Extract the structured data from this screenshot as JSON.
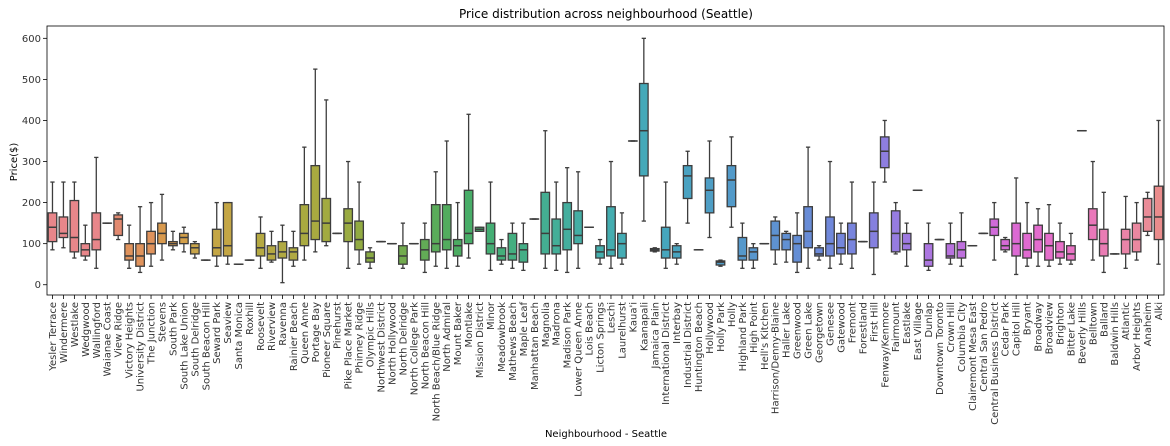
{
  "chart_data": {
    "type": "boxplot",
    "title": "Price distribution across neighbourhood (Seattle)",
    "xlabel": "Neighbourhood - Seattle",
    "ylabel": "Price($)",
    "ylim": [
      -25,
      630
    ],
    "yticks": [
      0,
      100,
      200,
      300,
      400,
      500,
      600
    ],
    "categories": [
      {
        "name": "Yesler Terrace",
        "color": "#e8868a",
        "min": 85,
        "q1": 105,
        "med": 140,
        "q3": 175,
        "max": 250
      },
      {
        "name": "Windermere",
        "color": "#e8868a",
        "min": 90,
        "q1": 115,
        "med": 125,
        "q3": 165,
        "max": 250
      },
      {
        "name": "Westlake",
        "color": "#e8868a",
        "min": 65,
        "q1": 80,
        "med": 115,
        "q3": 205,
        "max": 250
      },
      {
        "name": "Wedgwood",
        "color": "#e8868a",
        "min": 60,
        "q1": 70,
        "med": 85,
        "q3": 100,
        "max": 145
      },
      {
        "name": "Wallingford",
        "color": "#e8868a",
        "min": 40,
        "q1": 85,
        "med": 110,
        "q3": 175,
        "max": 310
      },
      {
        "name": "Waianae Coast",
        "color": "#e28a70",
        "min": 150,
        "q1": 150,
        "med": 150,
        "q3": 150,
        "max": 150
      },
      {
        "name": "View Ridge",
        "color": "#e28a70",
        "min": 110,
        "q1": 120,
        "med": 160,
        "q3": 170,
        "max": 175
      },
      {
        "name": "Victory Heights",
        "color": "#e0935c",
        "min": 40,
        "q1": 60,
        "med": 70,
        "q3": 100,
        "max": 145
      },
      {
        "name": "University District",
        "color": "#e0935c",
        "min": 30,
        "q1": 45,
        "med": 70,
        "q3": 100,
        "max": 190
      },
      {
        "name": "The Junction",
        "color": "#e0935c",
        "min": 45,
        "q1": 75,
        "med": 100,
        "q3": 130,
        "max": 200
      },
      {
        "name": "Stevens",
        "color": "#d99a4e",
        "min": 60,
        "q1": 100,
        "med": 125,
        "q3": 150,
        "max": 220
      },
      {
        "name": "South Park",
        "color": "#d99a4e",
        "min": 85,
        "q1": 95,
        "med": 100,
        "q3": 105,
        "max": 130
      },
      {
        "name": "South Lake Union",
        "color": "#d4a04a",
        "min": 80,
        "q1": 100,
        "med": 115,
        "q3": 125,
        "max": 140
      },
      {
        "name": "South Delridge",
        "color": "#c9a54a",
        "min": 65,
        "q1": 75,
        "med": 90,
        "q3": 100,
        "max": 105
      },
      {
        "name": "South Beacon Hill",
        "color": "#c9a54a",
        "min": 60,
        "q1": 60,
        "med": 60,
        "q3": 60,
        "max": 60
      },
      {
        "name": "Seward Park",
        "color": "#c4a645",
        "min": 45,
        "q1": 70,
        "med": 90,
        "q3": 135,
        "max": 200
      },
      {
        "name": "Seaview",
        "color": "#c4a645",
        "min": 50,
        "q1": 70,
        "med": 95,
        "q3": 200,
        "max": 200
      },
      {
        "name": "Santa Monica",
        "color": "#bda844",
        "min": 50,
        "q1": 50,
        "med": 50,
        "q3": 50,
        "max": 50
      },
      {
        "name": "Roxhill",
        "color": "#bda844",
        "min": 60,
        "q1": 60,
        "med": 60,
        "q3": 60,
        "max": 60
      },
      {
        "name": "Roosevelt",
        "color": "#b5a942",
        "min": 40,
        "q1": 70,
        "med": 90,
        "q3": 125,
        "max": 165
      },
      {
        "name": "Riverview",
        "color": "#b5a942",
        "min": 55,
        "q1": 60,
        "med": 75,
        "q3": 95,
        "max": 130
      },
      {
        "name": "Ravenna",
        "color": "#b0a942",
        "min": 5,
        "q1": 65,
        "med": 80,
        "q3": 105,
        "max": 145
      },
      {
        "name": "Rainier Beach",
        "color": "#b0a942",
        "min": 45,
        "q1": 60,
        "med": 80,
        "q3": 90,
        "max": 130
      },
      {
        "name": "Queen Anne",
        "color": "#a9aa40",
        "min": 60,
        "q1": 95,
        "med": 125,
        "q3": 195,
        "max": 335
      },
      {
        "name": "Portage Bay",
        "color": "#a9aa40",
        "min": 80,
        "q1": 110,
        "med": 155,
        "q3": 290,
        "max": 525
      },
      {
        "name": "Pioneer Square",
        "color": "#a2aa40",
        "min": 95,
        "q1": 105,
        "med": 150,
        "q3": 210,
        "max": 450
      },
      {
        "name": "Pinehurst",
        "color": "#a2aa40",
        "min": 125,
        "q1": 125,
        "med": 125,
        "q3": 125,
        "max": 125
      },
      {
        "name": "Pike Place Market",
        "color": "#9aab42",
        "min": 40,
        "q1": 105,
        "med": 150,
        "q3": 185,
        "max": 300
      },
      {
        "name": "Phinney Ridge",
        "color": "#92ab42",
        "min": 50,
        "q1": 85,
        "med": 110,
        "q3": 155,
        "max": 250
      },
      {
        "name": "Olympic Hills",
        "color": "#8aab45",
        "min": 40,
        "q1": 55,
        "med": 65,
        "q3": 80,
        "max": 90
      },
      {
        "name": "Northwest District",
        "color": "#82ab48",
        "min": 105,
        "q1": 105,
        "med": 105,
        "q3": 105,
        "max": 105
      },
      {
        "name": "North Hollywood",
        "color": "#7aab4a",
        "min": 100,
        "q1": 100,
        "med": 100,
        "q3": 100,
        "max": 100
      },
      {
        "name": "North Delridge",
        "color": "#72ab4e",
        "min": 40,
        "q1": 50,
        "med": 70,
        "q3": 95,
        "max": 150
      },
      {
        "name": "North College Park",
        "color": "#6aab52",
        "min": 100,
        "q1": 100,
        "med": 100,
        "q3": 100,
        "max": 100
      },
      {
        "name": "North Beacon Hill",
        "color": "#62ab56",
        "min": 30,
        "q1": 60,
        "med": 85,
        "q3": 110,
        "max": 150
      },
      {
        "name": "North Beach/Blue Ridge",
        "color": "#5aac5a",
        "min": 45,
        "q1": 80,
        "med": 100,
        "q3": 195,
        "max": 275
      },
      {
        "name": "North Admiral",
        "color": "#52ac5e",
        "min": 40,
        "q1": 85,
        "med": 110,
        "q3": 195,
        "max": 350
      },
      {
        "name": "Mount Baker",
        "color": "#4cac62",
        "min": 45,
        "q1": 70,
        "med": 95,
        "q3": 110,
        "max": 200
      },
      {
        "name": "Montlake",
        "color": "#48ad68",
        "min": 65,
        "q1": 100,
        "med": 125,
        "q3": 230,
        "max": 415
      },
      {
        "name": "Mission District",
        "color": "#46ad6e",
        "min": 130,
        "q1": 130,
        "med": 135,
        "q3": 140,
        "max": 140
      },
      {
        "name": "Minor",
        "color": "#44ae74",
        "min": 35,
        "q1": 75,
        "med": 100,
        "q3": 150,
        "max": 250
      },
      {
        "name": "Meadowbrook",
        "color": "#44ae7a",
        "min": 50,
        "q1": 60,
        "med": 70,
        "q3": 90,
        "max": 110
      },
      {
        "name": "Mathews Beach",
        "color": "#44ae80",
        "min": 40,
        "q1": 60,
        "med": 75,
        "q3": 125,
        "max": 150
      },
      {
        "name": "Maple Leaf",
        "color": "#44ae86",
        "min": 35,
        "q1": 55,
        "med": 85,
        "q3": 100,
        "max": 150
      },
      {
        "name": "Manhattan Beach",
        "color": "#44ae8c",
        "min": 160,
        "q1": 160,
        "med": 160,
        "q3": 160,
        "max": 160
      },
      {
        "name": "Magnolia",
        "color": "#44ae92",
        "min": 40,
        "q1": 75,
        "med": 125,
        "q3": 225,
        "max": 375
      },
      {
        "name": "Madrona",
        "color": "#44ae98",
        "min": 35,
        "q1": 75,
        "med": 95,
        "q3": 160,
        "max": 250
      },
      {
        "name": "Madison Park",
        "color": "#44ae9e",
        "min": 30,
        "q1": 85,
        "med": 135,
        "q3": 200,
        "max": 285
      },
      {
        "name": "Lower Queen Anne",
        "color": "#44aea4",
        "min": 40,
        "q1": 100,
        "med": 120,
        "q3": 180,
        "max": 275
      },
      {
        "name": "Lois Beach",
        "color": "#44aea8",
        "min": 140,
        "q1": 140,
        "med": 140,
        "q3": 140,
        "max": 140
      },
      {
        "name": "Licton Springs",
        "color": "#44aeac",
        "min": 50,
        "q1": 65,
        "med": 80,
        "q3": 95,
        "max": 110
      },
      {
        "name": "Leschi",
        "color": "#44adb0",
        "min": 40,
        "q1": 70,
        "med": 85,
        "q3": 190,
        "max": 300
      },
      {
        "name": "Laurelhurst",
        "color": "#44acb4",
        "min": 50,
        "q1": 65,
        "med": 100,
        "q3": 125,
        "max": 175
      },
      {
        "name": "Kaua'i",
        "color": "#44abb6",
        "min": 350,
        "q1": 350,
        "med": 350,
        "q3": 350,
        "max": 350
      },
      {
        "name": "Kaanapali",
        "color": "#44a9b9",
        "min": 155,
        "q1": 265,
        "med": 375,
        "q3": 490,
        "max": 600
      },
      {
        "name": "Jamaica Plain",
        "color": "#44a8bb",
        "min": 80,
        "q1": 82,
        "med": 85,
        "q3": 88,
        "max": 90
      },
      {
        "name": "International District",
        "color": "#46a6bd",
        "min": 40,
        "q1": 65,
        "med": 85,
        "q3": 140,
        "max": 250
      },
      {
        "name": "Interbay",
        "color": "#48a4bf",
        "min": 50,
        "q1": 65,
        "med": 80,
        "q3": 95,
        "max": 100
      },
      {
        "name": "Industrial District",
        "color": "#4aa2c1",
        "min": 150,
        "q1": 210,
        "med": 265,
        "q3": 290,
        "max": 325
      },
      {
        "name": "Huntington Beach",
        "color": "#4ca0c3",
        "min": 85,
        "q1": 85,
        "med": 85,
        "q3": 85,
        "max": 85
      },
      {
        "name": "Hollywood",
        "color": "#4e9ec5",
        "min": 115,
        "q1": 175,
        "med": 230,
        "q3": 260,
        "max": 350
      },
      {
        "name": "Holly Park",
        "color": "#509cc7",
        "min": 45,
        "q1": 48,
        "med": 55,
        "q3": 58,
        "max": 60
      },
      {
        "name": "Holly",
        "color": "#529ac9",
        "min": 140,
        "q1": 190,
        "med": 255,
        "q3": 290,
        "max": 360
      },
      {
        "name": "Highland Park",
        "color": "#5598cb",
        "min": 40,
        "q1": 60,
        "med": 70,
        "q3": 115,
        "max": 150
      },
      {
        "name": "High Point",
        "color": "#5896cd",
        "min": 40,
        "q1": 60,
        "med": 80,
        "q3": 90,
        "max": 100
      },
      {
        "name": "Hell's Kitchen",
        "color": "#5b94cf",
        "min": 100,
        "q1": 100,
        "med": 100,
        "q3": 100,
        "max": 100
      },
      {
        "name": "Harrison/Denny-Blaine",
        "color": "#5e92d1",
        "min": 50,
        "q1": 85,
        "med": 120,
        "q3": 155,
        "max": 165
      },
      {
        "name": "Haller Lake",
        "color": "#6190d3",
        "min": 55,
        "q1": 85,
        "med": 110,
        "q3": 125,
        "max": 130
      },
      {
        "name": "Greenwood",
        "color": "#648ed5",
        "min": 30,
        "q1": 55,
        "med": 100,
        "q3": 120,
        "max": 175
      },
      {
        "name": "Green Lake",
        "color": "#688cd7",
        "min": 40,
        "q1": 90,
        "med": 130,
        "q3": 190,
        "max": 335
      },
      {
        "name": "Georgetown",
        "color": "#6c8ad9",
        "min": 60,
        "q1": 70,
        "med": 75,
        "q3": 90,
        "max": 95
      },
      {
        "name": "Genesee",
        "color": "#7088db",
        "min": 40,
        "q1": 70,
        "med": 100,
        "q3": 165,
        "max": 300
      },
      {
        "name": "Gatewood",
        "color": "#7486dc",
        "min": 50,
        "q1": 75,
        "med": 90,
        "q3": 125,
        "max": 150
      },
      {
        "name": "Fremont",
        "color": "#7884dd",
        "min": 40,
        "q1": 75,
        "med": 110,
        "q3": 150,
        "max": 250
      },
      {
        "name": "Forestland",
        "color": "#7c82de",
        "min": 105,
        "q1": 105,
        "med": 105,
        "q3": 105,
        "max": 105
      },
      {
        "name": "First Hill",
        "color": "#8580df",
        "min": 25,
        "q1": 90,
        "med": 130,
        "q3": 175,
        "max": 250
      },
      {
        "name": "Fenway/Kenmore",
        "color": "#8e7ee0",
        "min": 250,
        "q1": 285,
        "med": 325,
        "q3": 360,
        "max": 400
      },
      {
        "name": "Fairmount",
        "color": "#967ce1",
        "min": 75,
        "q1": 80,
        "med": 125,
        "q3": 180,
        "max": 200
      },
      {
        "name": "Eastlake",
        "color": "#9e7ae1",
        "min": 45,
        "q1": 85,
        "med": 100,
        "q3": 125,
        "max": 150
      },
      {
        "name": "East Village",
        "color": "#a578e1",
        "min": 230,
        "q1": 230,
        "med": 230,
        "q3": 230,
        "max": 230
      },
      {
        "name": "Dunlap",
        "color": "#ac76e0",
        "min": 35,
        "q1": 45,
        "med": 60,
        "q3": 100,
        "max": 150
      },
      {
        "name": "Downtown Toronto",
        "color": "#b274df",
        "min": 110,
        "q1": 110,
        "med": 110,
        "q3": 110,
        "max": 110
      },
      {
        "name": "Crown Hill",
        "color": "#b872de",
        "min": 50,
        "q1": 65,
        "med": 70,
        "q3": 100,
        "max": 150
      },
      {
        "name": "Columbia City",
        "color": "#be70dd",
        "min": 45,
        "q1": 65,
        "med": 85,
        "q3": 105,
        "max": 175
      },
      {
        "name": "Clairemont Mesa East",
        "color": "#c46edc",
        "min": 95,
        "q1": 95,
        "med": 95,
        "q3": 95,
        "max": 95
      },
      {
        "name": "Central San Pedro",
        "color": "#ca6cdb",
        "min": 125,
        "q1": 125,
        "med": 125,
        "q3": 125,
        "max": 125
      },
      {
        "name": "Central Business District",
        "color": "#d06ad9",
        "min": 60,
        "q1": 120,
        "med": 140,
        "q3": 160,
        "max": 200
      },
      {
        "name": "Cedar Park",
        "color": "#d66ad6",
        "min": 80,
        "q1": 85,
        "med": 95,
        "q3": 110,
        "max": 115
      },
      {
        "name": "Capitol Hill",
        "color": "#dc6ad3",
        "min": 25,
        "q1": 70,
        "med": 100,
        "q3": 150,
        "max": 260
      },
      {
        "name": "Bryant",
        "color": "#e06ad0",
        "min": 45,
        "q1": 65,
        "med": 85,
        "q3": 125,
        "max": 200
      },
      {
        "name": "Broadway",
        "color": "#e36cce",
        "min": 45,
        "q1": 80,
        "med": 110,
        "q3": 145,
        "max": 185
      },
      {
        "name": "Broadview",
        "color": "#e56ecb",
        "min": 45,
        "q1": 60,
        "med": 95,
        "q3": 125,
        "max": 195
      },
      {
        "name": "Brighton",
        "color": "#e770c8",
        "min": 50,
        "q1": 65,
        "med": 80,
        "q3": 105,
        "max": 150
      },
      {
        "name": "Bitter Lake",
        "color": "#e872c4",
        "min": 50,
        "q1": 60,
        "med": 75,
        "q3": 95,
        "max": 125
      },
      {
        "name": "Beverly Hills",
        "color": "#e974c0",
        "min": 375,
        "q1": 375,
        "med": 375,
        "q3": 375,
        "max": 375
      },
      {
        "name": "Belltown",
        "color": "#ea78ba",
        "min": 60,
        "q1": 110,
        "med": 145,
        "q3": 185,
        "max": 300
      },
      {
        "name": "Ballard",
        "color": "#ea7cb4",
        "min": 30,
        "q1": 70,
        "med": 100,
        "q3": 135,
        "max": 225
      },
      {
        "name": "Baldwin Hills",
        "color": "#ea80ae",
        "min": 75,
        "q1": 75,
        "med": 75,
        "q3": 75,
        "max": 75
      },
      {
        "name": "Atlantic",
        "color": "#ea84a8",
        "min": 40,
        "q1": 75,
        "med": 110,
        "q3": 135,
        "max": 215
      },
      {
        "name": "Arbor Heights",
        "color": "#ea88a0",
        "min": 60,
        "q1": 80,
        "med": 110,
        "q3": 150,
        "max": 200
      },
      {
        "name": "Anaheim",
        "color": "#ea8c98",
        "min": 120,
        "q1": 130,
        "med": 165,
        "q3": 210,
        "max": 225
      },
      {
        "name": "Alki",
        "color": "#ea8c8c",
        "min": 50,
        "q1": 110,
        "med": 165,
        "q3": 240,
        "max": 400
      }
    ]
  }
}
